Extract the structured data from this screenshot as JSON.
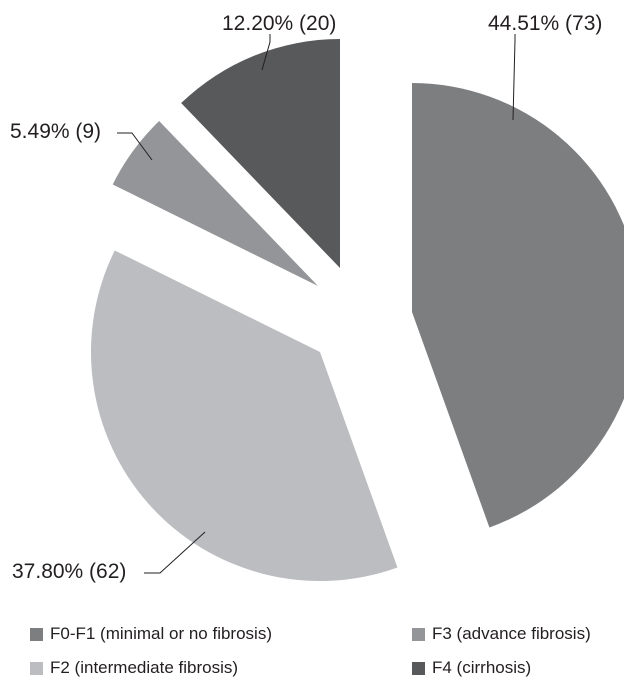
{
  "chart_data": {
    "type": "pie",
    "exploded": true,
    "slices": [
      {
        "name": "F0-F1 (minimal or no fibrosis)",
        "percent": 44.51,
        "count": 73,
        "label": "44.51% (73)",
        "color": "#7d7e80"
      },
      {
        "name": "F2 (intermediate fibrosis)",
        "percent": 37.8,
        "count": 62,
        "label": "37.80% (62)",
        "color": "#bcbdc0"
      },
      {
        "name": "F3 (advance fibrosis)",
        "percent": 5.49,
        "count": 9,
        "label": "5.49% (9)",
        "color": "#939598"
      },
      {
        "name": "F4 (cirrhosis)",
        "percent": 12.2,
        "count": 20,
        "label": "12.20% (20)",
        "color": "#58595b"
      }
    ],
    "legend": {
      "position": "bottom",
      "items": [
        {
          "label": "F0-F1 (minimal or no fibrosis)",
          "color": "#7d7e80"
        },
        {
          "label": "F3 (advance fibrosis)",
          "color": "#939598"
        },
        {
          "label": "F2 (intermediate fibrosis)",
          "color": "#bcbdc0"
        },
        {
          "label": "F4 (cirrhosis)",
          "color": "#58595b"
        }
      ]
    }
  }
}
